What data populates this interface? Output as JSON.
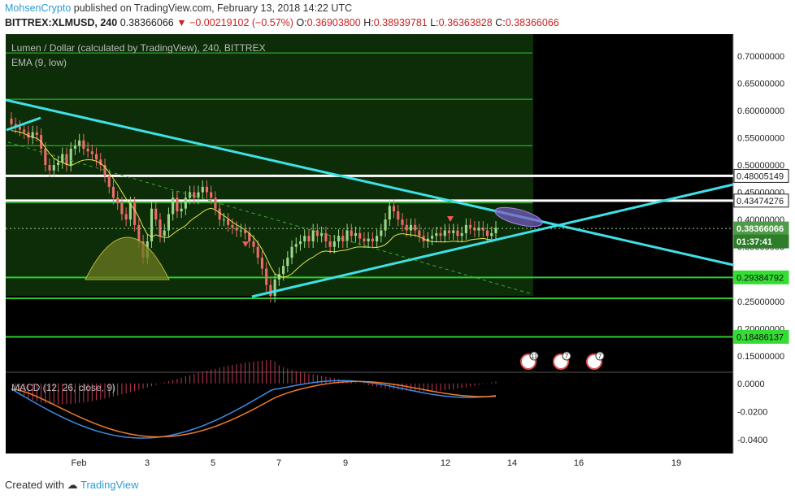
{
  "header": {
    "user": "MohsenCrypto",
    "published_text": "published on TradingView.com, February 13, 2018 14:22 UTC",
    "symbol": "BITTREX:XLMUSD, 240",
    "last": "0.38366066",
    "change": "▼ −0.00219102 (−0.57%)",
    "o_label": "O:",
    "o": "0.36903800",
    "h_label": "H:",
    "h": "0.38939781",
    "l_label": "L:",
    "l": "0.36363828",
    "c_label": "C:",
    "c": "0.38366066"
  },
  "chart_title": "Lumen / Dollar (calculated by TradingView), 240, BITTREX",
  "ema_label": "EMA (9, low)",
  "macd_label": "MACD (12, 26, close, 9)",
  "footer": {
    "created_with": "Created with",
    "brand": "TradingView"
  },
  "colors": {
    "bg": "#000000",
    "panel_green": "#0d2d08",
    "up": "#9dd68a",
    "down": "#ef6a6a",
    "ema": "#e6e64a",
    "trend": "#3fe0e6",
    "hline_green": "#2ecc2e",
    "hline_white": "#ffffff",
    "macd": "#3c8ce6",
    "signal": "#f07a2a",
    "hist": "#c23a55",
    "oval": "#7d5cc9"
  },
  "chart_data": [
    {
      "type": "candlestick",
      "title": "Lumen / Dollar (calculated by TradingView), 240, BITTREX",
      "x_ticks": [
        "Feb",
        "3",
        "5",
        "7",
        "9",
        "12",
        "14",
        "16",
        "19"
      ],
      "y_ticks": [
        "0.70000000",
        "0.65000000",
        "0.60000000",
        "0.55000000",
        "0.50000000",
        "0.45000000",
        "0.40000000",
        "0.35000000",
        "0.30000000",
        "0.25000000",
        "0.20000000",
        "0.15000000"
      ],
      "ylim": [
        0.12,
        0.74
      ],
      "price_labels": [
        {
          "value": "0.48005149",
          "style": "white"
        },
        {
          "value": "0.43474276",
          "style": "white"
        },
        {
          "value": "0.38366066",
          "style": "last"
        },
        {
          "value": "01:37:41",
          "style": "timer"
        },
        {
          "value": "0.29384792",
          "style": "green"
        },
        {
          "value": "0.18486137",
          "style": "green"
        }
      ],
      "horizontal_levels": [
        {
          "value": 0.7055,
          "color": "green"
        },
        {
          "value": 0.6205,
          "color": "green"
        },
        {
          "value": 0.5355,
          "color": "green"
        },
        {
          "value": 0.48005149,
          "color": "white"
        },
        {
          "value": 0.43474276,
          "color": "white"
        },
        {
          "value": 0.4305,
          "color": "green"
        },
        {
          "value": 0.29384792,
          "color": "green"
        },
        {
          "value": 0.2555,
          "color": "green"
        },
        {
          "value": 0.18486137,
          "color": "green"
        }
      ],
      "close_series": [
        0.575,
        0.57,
        0.565,
        0.56,
        0.55,
        0.56,
        0.555,
        0.53,
        0.5,
        0.49,
        0.5,
        0.505,
        0.52,
        0.5,
        0.53,
        0.535,
        0.545,
        0.53,
        0.525,
        0.52,
        0.51,
        0.5,
        0.48,
        0.46,
        0.44,
        0.43,
        0.41,
        0.4,
        0.43,
        0.39,
        0.36,
        0.33,
        0.36,
        0.42,
        0.4,
        0.37,
        0.38,
        0.41,
        0.44,
        0.415,
        0.42,
        0.44,
        0.45,
        0.44,
        0.45,
        0.46,
        0.45,
        0.44,
        0.42,
        0.4,
        0.4,
        0.39,
        0.385,
        0.38,
        0.38,
        0.375,
        0.36,
        0.35,
        0.33,
        0.31,
        0.28,
        0.26,
        0.29,
        0.3,
        0.315,
        0.33,
        0.35,
        0.355,
        0.36,
        0.37,
        0.36,
        0.38,
        0.37,
        0.375,
        0.36,
        0.35,
        0.36,
        0.37,
        0.36,
        0.38,
        0.37,
        0.375,
        0.365,
        0.36,
        0.365,
        0.36,
        0.37,
        0.38,
        0.4,
        0.425,
        0.415,
        0.4,
        0.39,
        0.38,
        0.39,
        0.38,
        0.37,
        0.36,
        0.365,
        0.37,
        0.375,
        0.37,
        0.38,
        0.375,
        0.38,
        0.37,
        0.375,
        0.39,
        0.385,
        0.38,
        0.385,
        0.38,
        0.37,
        0.375,
        0.385
      ],
      "macd_panel": {
        "y_ticks": [
          "0.0000",
          "-0.0200",
          "-0.0400"
        ],
        "ylim": [
          -0.05,
          0.008
        ]
      }
    }
  ]
}
